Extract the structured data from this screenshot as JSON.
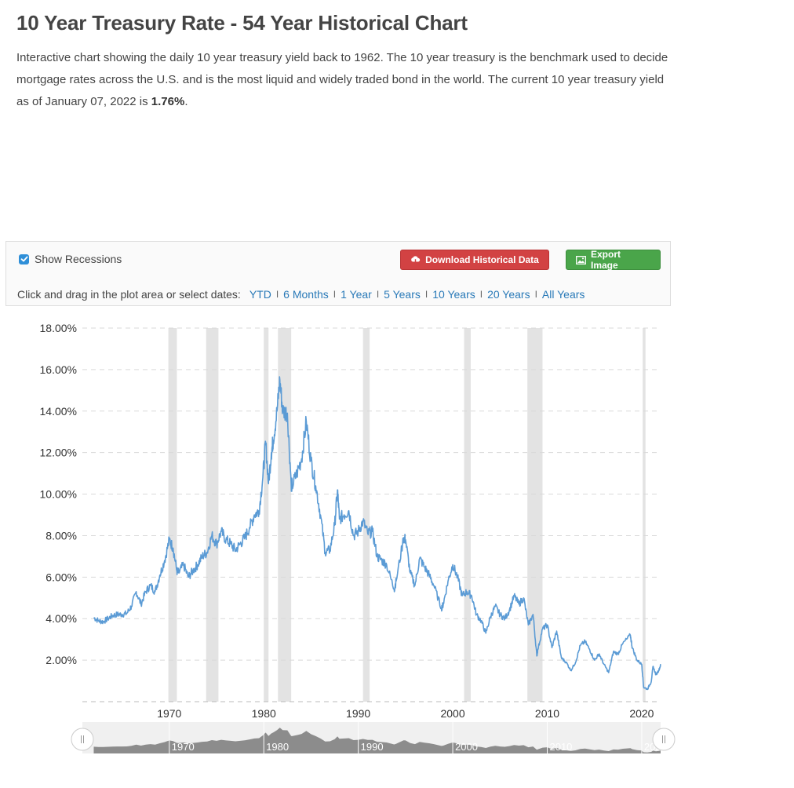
{
  "page": {
    "title": "10 Year Treasury Rate - 54 Year Historical Chart",
    "intro_part1": "Interactive chart showing the daily 10 year treasury yield back to 1962. The 10 year treasury is the benchmark used to decide mortgage rates across the U.S. and is the most liquid and widely traded bond in the world. The current 10 year treasury yield as of January 07, 2022 is ",
    "intro_value": "1.76%",
    "intro_end": "."
  },
  "toolbar": {
    "show_recessions_label": "Show Recessions",
    "show_recessions_checked": true,
    "download_label": "Download Historical Data",
    "export_label": "Export Image",
    "dates_prompt": "Click and drag in the plot area or select dates:",
    "date_ranges": [
      "YTD",
      "6 Months",
      "1 Year",
      "5 Years",
      "10 Years",
      "20 Years",
      "All Years"
    ],
    "separator": "I"
  },
  "colors": {
    "line": "#5b9bd5",
    "recession": "#e3e3e3",
    "grid": "#d9d9d9",
    "download_button": "#d24243",
    "export_button": "#4aa54a",
    "link": "#2a7ab8",
    "navigator_fill": "#8c8c8c"
  },
  "chart_data": {
    "type": "line",
    "ylim": [
      0,
      18
    ],
    "xlim": [
      1960.8,
      2022.0
    ],
    "y_ticks": [
      "2.00%",
      "4.00%",
      "6.00%",
      "8.00%",
      "10.00%",
      "12.00%",
      "14.00%",
      "16.00%",
      "18.00%"
    ],
    "y_tick_values": [
      2,
      4,
      6,
      8,
      10,
      12,
      14,
      16,
      18
    ],
    "x_ticks": [
      "1970",
      "1980",
      "1990",
      "2000",
      "2010",
      "2020"
    ],
    "x_tick_values": [
      1970,
      1980,
      1990,
      2000,
      2010,
      2020
    ],
    "grid": true,
    "recessions": [
      [
        1969.9,
        1970.8
      ],
      [
        1973.9,
        1975.2
      ],
      [
        1980.0,
        1980.5
      ],
      [
        1981.5,
        1982.9
      ],
      [
        1990.5,
        1991.2
      ],
      [
        2001.2,
        2001.9
      ],
      [
        2007.9,
        2009.5
      ],
      [
        2020.1,
        2020.4
      ]
    ],
    "series": [
      {
        "x": [
          1962.0,
          1962.5,
          1963.0,
          1963.5,
          1964.0,
          1964.5,
          1965.0,
          1965.5,
          1966.0,
          1966.5,
          1967.0,
          1967.5,
          1968.0,
          1968.5,
          1969.0,
          1969.5,
          1970.0,
          1970.4,
          1970.8,
          1971.0,
          1971.5,
          1972.0,
          1972.5,
          1973.0,
          1973.5,
          1974.0,
          1974.5,
          1975.0,
          1975.5,
          1976.0,
          1976.5,
          1977.0,
          1977.5,
          1978.0,
          1978.5,
          1979.0,
          1979.5,
          1979.9,
          1980.2,
          1980.5,
          1980.8,
          1981.0,
          1981.4,
          1981.7,
          1982.0,
          1982.5,
          1982.9,
          1983.0,
          1983.5,
          1984.0,
          1984.5,
          1985.0,
          1985.5,
          1986.0,
          1986.5,
          1987.0,
          1987.5,
          1987.8,
          1988.0,
          1988.5,
          1989.0,
          1989.5,
          1990.0,
          1990.5,
          1991.0,
          1991.5,
          1992.0,
          1992.5,
          1993.0,
          1993.8,
          1994.0,
          1994.8,
          1995.0,
          1995.5,
          1996.0,
          1996.5,
          1997.0,
          1997.5,
          1998.0,
          1998.8,
          1999.0,
          1999.5,
          2000.0,
          2000.5,
          2001.0,
          2001.5,
          2002.0,
          2002.5,
          2003.0,
          2003.5,
          2004.0,
          2004.5,
          2005.0,
          2005.5,
          2006.0,
          2006.5,
          2007.0,
          2007.5,
          2008.0,
          2008.5,
          2008.9,
          2009.0,
          2009.5,
          2010.0,
          2010.5,
          2011.0,
          2011.5,
          2012.0,
          2012.5,
          2013.0,
          2013.5,
          2014.0,
          2014.5,
          2015.0,
          2015.5,
          2016.0,
          2016.5,
          2017.0,
          2017.5,
          2018.0,
          2018.8,
          2019.0,
          2019.5,
          2020.0,
          2020.2,
          2020.6,
          2021.0,
          2021.2,
          2021.5,
          2021.8,
          2022.0
        ],
        "values": [
          4.05,
          3.9,
          3.85,
          4.0,
          4.15,
          4.2,
          4.2,
          4.25,
          4.6,
          5.3,
          4.7,
          5.3,
          5.6,
          5.3,
          6.1,
          6.8,
          7.8,
          7.4,
          6.3,
          6.2,
          6.6,
          6.0,
          6.3,
          6.6,
          7.0,
          7.2,
          8.0,
          7.6,
          8.2,
          7.8,
          7.6,
          7.3,
          7.6,
          7.9,
          8.4,
          9.0,
          9.2,
          10.8,
          12.5,
          10.5,
          12.0,
          12.6,
          14.0,
          15.5,
          14.0,
          13.9,
          10.5,
          10.4,
          11.0,
          11.7,
          13.5,
          11.6,
          10.4,
          9.0,
          7.2,
          7.3,
          8.5,
          10.2,
          8.8,
          9.0,
          9.2,
          8.0,
          8.2,
          8.7,
          8.1,
          8.2,
          7.0,
          6.8,
          6.6,
          5.4,
          5.8,
          7.9,
          7.8,
          6.2,
          5.6,
          6.9,
          6.5,
          6.1,
          5.6,
          4.5,
          4.7,
          5.8,
          6.6,
          6.0,
          5.1,
          5.3,
          5.1,
          4.2,
          3.9,
          3.3,
          4.1,
          4.6,
          4.2,
          4.0,
          4.4,
          5.1,
          4.7,
          5.0,
          3.7,
          4.2,
          2.2,
          2.5,
          3.5,
          3.7,
          2.6,
          3.4,
          2.1,
          1.9,
          1.5,
          1.9,
          2.7,
          2.9,
          2.5,
          2.0,
          2.3,
          1.8,
          1.4,
          2.4,
          2.3,
          2.8,
          3.2,
          2.6,
          2.0,
          1.8,
          0.7,
          0.6,
          0.95,
          1.7,
          1.3,
          1.5,
          1.76
        ]
      }
    ]
  }
}
